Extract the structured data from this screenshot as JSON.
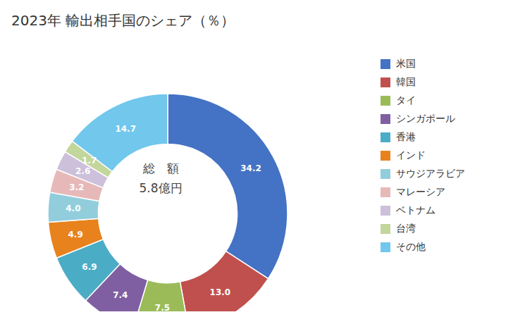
{
  "chart_data": {
    "type": "pie",
    "title": "2023年 輸出相手国のシェア（％）",
    "annotations": [
      "総　額",
      "5.8億円"
    ],
    "categories": [
      "米国",
      "韓国",
      "タイ",
      "シンガポール",
      "香港",
      "インド",
      "サウジアラビア",
      "マレーシア",
      "ベトナム",
      "台湾",
      "その他"
    ],
    "values": [
      34.2,
      13.0,
      7.5,
      7.4,
      6.9,
      4.9,
      4.0,
      3.2,
      2.6,
      1.7,
      14.7
    ],
    "value_labels": [
      "34.2",
      "13.0",
      "7.5",
      "7.4",
      "6.9",
      "4.9",
      "4.0",
      "3.2",
      "2.6",
      "1.7",
      "14.7"
    ],
    "colors": [
      "#4472C4",
      "#C0504D",
      "#9BBB59",
      "#7F5FA2",
      "#4BACC6",
      "#E8821C",
      "#92CDDC",
      "#E6B9B8",
      "#CCC0DA",
      "#C3D69B",
      "#71C7EC"
    ],
    "data_labels": true,
    "legend": "right"
  }
}
